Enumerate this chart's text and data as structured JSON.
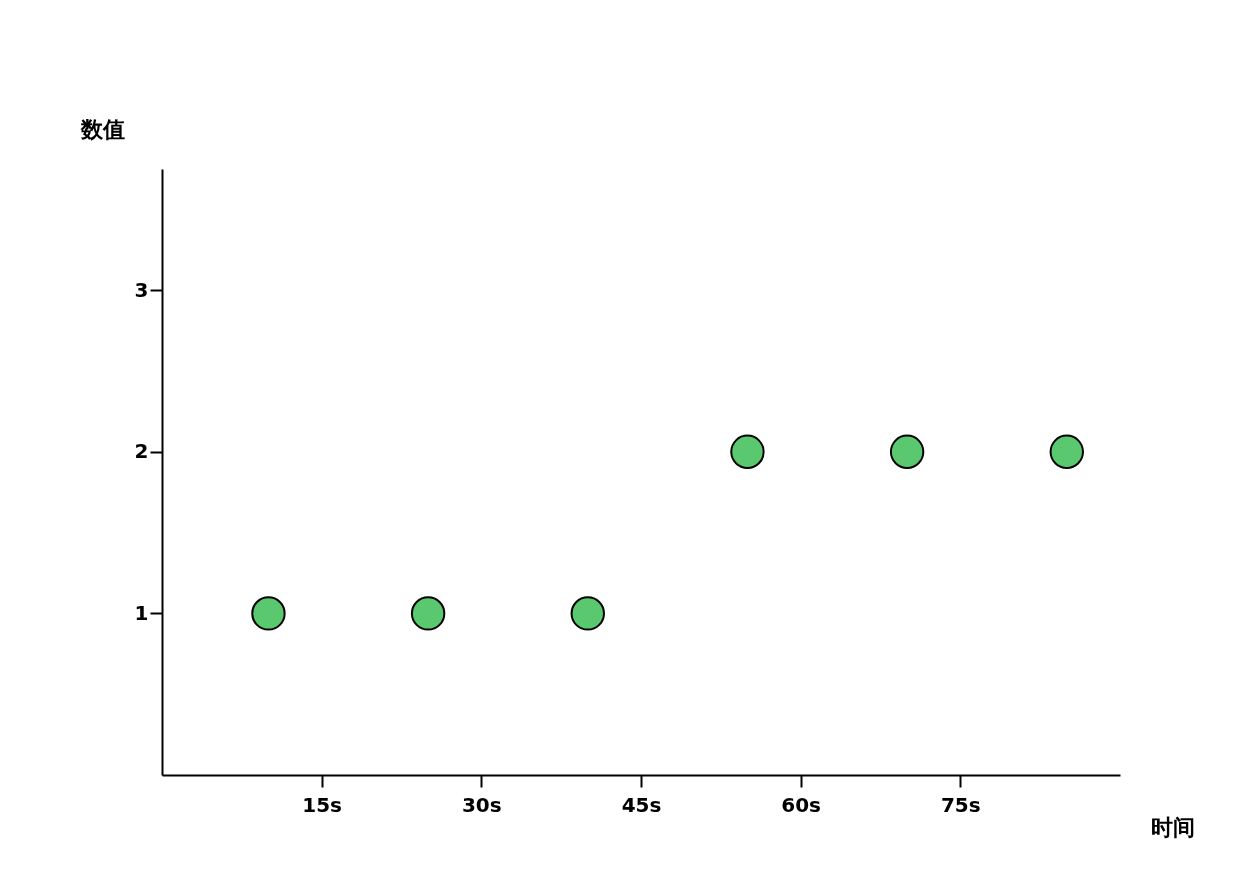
{
  "chart_data": {
    "type": "scatter",
    "xlabel": "时间",
    "ylabel": "数值",
    "x": [
      10,
      25,
      40,
      55,
      70,
      85
    ],
    "series": [
      {
        "color": "#5ac86e",
        "values": [
          1,
          1,
          1,
          2,
          2,
          2
        ]
      }
    ],
    "xlim": [
      0,
      90
    ],
    "ylim": [
      0,
      3.75
    ],
    "xticks": [
      {
        "value": 15,
        "label": "15s"
      },
      {
        "value": 30,
        "label": "30s"
      },
      {
        "value": 45,
        "label": "45s"
      },
      {
        "value": 60,
        "label": "60s"
      },
      {
        "value": 75,
        "label": "75s"
      }
    ],
    "yticks": [
      1,
      2,
      3
    ],
    "marker": "circle"
  }
}
